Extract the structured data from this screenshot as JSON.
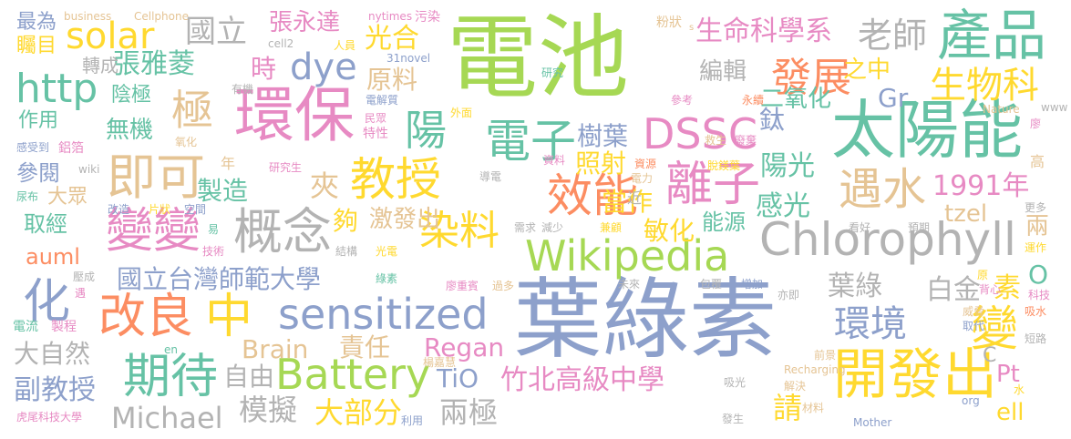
{
  "colors": {
    "green": "#a6d854",
    "blue": "#8da0cb",
    "pink": "#e78ac3",
    "orange": "#fc8d62",
    "yellow": "#ffd92f",
    "tan": "#e5c494",
    "teal": "#66c2a5",
    "gray": "#b3b3b3"
  },
  "words": [
    {
      "text": "電池",
      "color": "green"
    },
    {
      "text": "葉綠素",
      "color": "blue"
    },
    {
      "text": "太陽能",
      "color": "teal"
    },
    {
      "text": "環保",
      "color": "pink"
    },
    {
      "text": "產品",
      "color": "teal"
    },
    {
      "text": "Chlorophyll",
      "color": "gray"
    },
    {
      "text": "Wikipedia",
      "color": "green"
    },
    {
      "text": "開發出",
      "color": "yellow"
    },
    {
      "text": "sensitized",
      "color": "blue"
    },
    {
      "text": "Battery",
      "color": "green"
    },
    {
      "text": "效能",
      "color": "orange"
    },
    {
      "text": "離子",
      "color": "pink"
    },
    {
      "text": "教授",
      "color": "yellow"
    },
    {
      "text": "電子",
      "color": "teal"
    },
    {
      "text": "DSSC",
      "color": "pink"
    },
    {
      "text": "概念",
      "color": "gray"
    },
    {
      "text": "變變",
      "color": "pink"
    },
    {
      "text": "即可",
      "color": "tan"
    },
    {
      "text": "期待",
      "color": "teal"
    },
    {
      "text": "改良",
      "color": "orange"
    },
    {
      "text": "中",
      "color": "yellow"
    },
    {
      "text": "化",
      "color": "blue"
    },
    {
      "text": "染料",
      "color": "yellow"
    },
    {
      "text": "遇水",
      "color": "tan"
    },
    {
      "text": "環境",
      "color": "blue"
    },
    {
      "text": "變",
      "color": "yellow"
    },
    {
      "text": "竹北高級中學",
      "color": "pink"
    },
    {
      "text": "國立台灣師範大學",
      "color": "blue"
    },
    {
      "text": "Michael",
      "color": "gray"
    },
    {
      "text": "副教授",
      "color": "blue"
    },
    {
      "text": "大自然",
      "color": "gray"
    },
    {
      "text": "模擬",
      "color": "gray"
    },
    {
      "text": "自由",
      "color": "gray"
    },
    {
      "text": "大部分",
      "color": "yellow"
    },
    {
      "text": "兩極",
      "color": "gray"
    },
    {
      "text": "請",
      "color": "yellow"
    },
    {
      "text": "Pt",
      "color": "pink"
    },
    {
      "text": "ell",
      "color": "yellow"
    },
    {
      "text": "Regan",
      "color": "pink"
    },
    {
      "text": "TiO",
      "color": "blue"
    },
    {
      "text": "Brain",
      "color": "tan"
    },
    {
      "text": "責任",
      "color": "tan"
    },
    {
      "text": "solar",
      "color": "yellow"
    },
    {
      "text": "http",
      "color": "teal"
    },
    {
      "text": "dye",
      "color": "blue"
    },
    {
      "text": "國立",
      "color": "gray"
    },
    {
      "text": "張永達",
      "color": "pink"
    },
    {
      "text": "張雅菱",
      "color": "teal"
    },
    {
      "text": "光合",
      "color": "yellow"
    },
    {
      "text": "時",
      "color": "pink"
    },
    {
      "text": "極",
      "color": "tan"
    },
    {
      "text": "陽",
      "color": "teal"
    },
    {
      "text": "原料",
      "color": "tan"
    },
    {
      "text": "老師",
      "color": "gray"
    },
    {
      "text": "生命科學系",
      "color": "pink"
    },
    {
      "text": "編輯",
      "color": "gray"
    },
    {
      "text": "發展",
      "color": "orange"
    },
    {
      "text": "之中",
      "color": "yellow"
    },
    {
      "text": "生物科",
      "color": "yellow"
    },
    {
      "text": "二氧化",
      "color": "teal"
    },
    {
      "text": "鈦",
      "color": "blue"
    },
    {
      "text": "Gr",
      "color": "blue"
    },
    {
      "text": "樹葉",
      "color": "blue"
    },
    {
      "text": "照射",
      "color": "yellow"
    },
    {
      "text": "陽光",
      "color": "teal"
    },
    {
      "text": "感光",
      "color": "teal"
    },
    {
      "text": "1991年",
      "color": "pink"
    },
    {
      "text": "tzel",
      "color": "tan"
    },
    {
      "text": "當作",
      "color": "yellow"
    },
    {
      "text": "敏化",
      "color": "yellow"
    },
    {
      "text": "能源",
      "color": "teal"
    },
    {
      "text": "激發出",
      "color": "tan"
    },
    {
      "text": "夠",
      "color": "yellow"
    },
    {
      "text": "夾",
      "color": "tan"
    },
    {
      "text": "製造",
      "color": "teal"
    },
    {
      "text": "轉成",
      "color": "gray"
    },
    {
      "text": "陰極",
      "color": "teal"
    },
    {
      "text": "作用",
      "color": "teal"
    },
    {
      "text": "無機",
      "color": "teal"
    },
    {
      "text": "參閱",
      "color": "blue"
    },
    {
      "text": "取經",
      "color": "teal"
    },
    {
      "text": "auml",
      "color": "orange"
    },
    {
      "text": "大眾",
      "color": "tan"
    },
    {
      "text": "最為",
      "color": "blue"
    },
    {
      "text": "矚目",
      "color": "yellow"
    },
    {
      "text": "葉綠",
      "color": "gray"
    },
    {
      "text": "白金",
      "color": "gray"
    },
    {
      "text": "素",
      "color": "yellow"
    },
    {
      "text": "O",
      "color": "teal"
    },
    {
      "text": "C",
      "color": "gray"
    },
    {
      "text": "兩",
      "color": "tan"
    },
    {
      "text": "business",
      "color": "tan"
    },
    {
      "text": "Cellphone",
      "color": "tan"
    },
    {
      "text": "nytimes",
      "color": "pink"
    },
    {
      "text": "污染",
      "color": "pink"
    },
    {
      "text": "粉狀",
      "color": "tan"
    },
    {
      "text": "cell2",
      "color": "gray"
    },
    {
      "text": "人員",
      "color": "yellow"
    },
    {
      "text": "31novel",
      "color": "blue"
    },
    {
      "text": "有機",
      "color": "gray"
    },
    {
      "text": "電解質",
      "color": "blue"
    },
    {
      "text": "研究",
      "color": "teal"
    },
    {
      "text": "參考",
      "color": "pink"
    },
    {
      "text": "感受到",
      "color": "blue"
    },
    {
      "text": "鋁箔",
      "color": "pink"
    },
    {
      "text": "外面",
      "color": "yellow"
    },
    {
      "text": "民眾",
      "color": "pink"
    },
    {
      "text": "特性",
      "color": "pink"
    },
    {
      "text": "氧化",
      "color": "tan"
    },
    {
      "text": "救生",
      "color": "tan"
    },
    {
      "text": "廢棄",
      "color": "pink"
    },
    {
      "text": "永續",
      "color": "orange"
    },
    {
      "text": "脫鎂葉",
      "color": "yellow"
    },
    {
      "text": "Nature",
      "color": "tan"
    },
    {
      "text": "www",
      "color": "gray"
    },
    {
      "text": "廖",
      "color": "pink"
    },
    {
      "text": "wiki",
      "color": "gray"
    },
    {
      "text": "年",
      "color": "tan"
    },
    {
      "text": "研究生",
      "color": "pink"
    },
    {
      "text": "資料",
      "color": "pink"
    },
    {
      "text": "資源",
      "color": "orange"
    },
    {
      "text": "導電",
      "color": "gray"
    },
    {
      "text": "電力",
      "color": "tan"
    },
    {
      "text": "高",
      "color": "tan"
    },
    {
      "text": "尿布",
      "color": "teal"
    },
    {
      "text": "改造",
      "color": "blue"
    },
    {
      "text": "片狀",
      "color": "yellow"
    },
    {
      "text": "空間",
      "color": "blue"
    },
    {
      "text": "近",
      "color": "gray"
    },
    {
      "text": "更多",
      "color": "gray"
    },
    {
      "text": "易",
      "color": "teal"
    },
    {
      "text": "需求",
      "color": "gray"
    },
    {
      "text": "減少",
      "color": "gray"
    },
    {
      "text": "兼顧",
      "color": "yellow"
    },
    {
      "text": "看好",
      "color": "gray"
    },
    {
      "text": "預期",
      "color": "gray"
    },
    {
      "text": "技術",
      "color": "pink"
    },
    {
      "text": "結構",
      "color": "gray"
    },
    {
      "text": "光電",
      "color": "yellow"
    },
    {
      "text": "運作",
      "color": "yellow"
    },
    {
      "text": "壓成",
      "color": "gray"
    },
    {
      "text": "遇",
      "color": "pink"
    },
    {
      "text": "綠素",
      "color": "teal"
    },
    {
      "text": "廖重賓",
      "color": "pink"
    },
    {
      "text": "過多",
      "color": "tan"
    },
    {
      "text": "未來",
      "color": "gray"
    },
    {
      "text": "包覆",
      "color": "gray"
    },
    {
      "text": "增加",
      "color": "blue"
    },
    {
      "text": "亦即",
      "color": "gray"
    },
    {
      "text": "原",
      "color": "yellow"
    },
    {
      "text": "背心",
      "color": "pink"
    },
    {
      "text": "科技",
      "color": "pink"
    },
    {
      "text": "吸水",
      "color": "orange"
    },
    {
      "text": "威脅",
      "color": "tan"
    },
    {
      "text": "取代",
      "color": "blue"
    },
    {
      "text": "電流",
      "color": "teal"
    },
    {
      "text": "製程",
      "color": "pink"
    },
    {
      "text": "en",
      "color": "teal"
    },
    {
      "text": "楊嘉慧",
      "color": "tan"
    },
    {
      "text": "前景",
      "color": "tan"
    },
    {
      "text": "Recharging",
      "color": "tan"
    },
    {
      "text": "短路",
      "color": "gray"
    },
    {
      "text": "吸光",
      "color": "gray"
    },
    {
      "text": "解決",
      "color": "tan"
    },
    {
      "text": "水",
      "color": "yellow"
    },
    {
      "text": "org",
      "color": "blue"
    },
    {
      "text": "虎尾科技大學",
      "color": "pink"
    },
    {
      "text": "利用",
      "color": "blue"
    },
    {
      "text": "發生",
      "color": "gray"
    },
    {
      "text": "材料",
      "color": "tan"
    },
    {
      "text": "Mother",
      "color": "blue"
    },
    {
      "text": "s",
      "color": "tan"
    }
  ]
}
